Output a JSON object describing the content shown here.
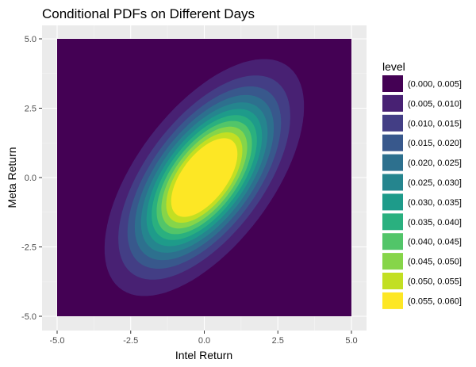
{
  "chart_data": {
    "type": "contour",
    "title": "Conditional PDFs on Different Days",
    "xlabel": "Intel Return",
    "ylabel": "Meta Return",
    "xlim": [
      -5.0,
      5.0
    ],
    "ylim": [
      -5.0,
      5.0
    ],
    "x_ticks": [
      -5.0,
      -2.5,
      0.0,
      2.5,
      5.0
    ],
    "x_tick_labels": [
      "-5.0",
      "-2.5",
      "0.0",
      "2.5",
      "5.0"
    ],
    "y_ticks": [
      -5.0,
      -2.5,
      0.0,
      2.5,
      5.0
    ],
    "y_tick_labels": [
      "-5.0",
      "-2.5",
      "0.0",
      "2.5",
      "5.0"
    ],
    "grid": true,
    "panel_background": "#ebebeb",
    "legend": {
      "title": "level",
      "position": "right",
      "entries": [
        {
          "label": "(0.000, 0.005]",
          "color": "#440154"
        },
        {
          "label": "(0.005, 0.010]",
          "color": "#482173"
        },
        {
          "label": "(0.010, 0.015]",
          "color": "#433e85"
        },
        {
          "label": "(0.015, 0.020]",
          "color": "#38588c"
        },
        {
          "label": "(0.020, 0.025]",
          "color": "#2d708e"
        },
        {
          "label": "(0.025, 0.030]",
          "color": "#25858e"
        },
        {
          "label": "(0.030, 0.035]",
          "color": "#1e9b8a"
        },
        {
          "label": "(0.035, 0.040]",
          "color": "#2ab07f"
        },
        {
          "label": "(0.040, 0.045]",
          "color": "#52c569"
        },
        {
          "label": "(0.045, 0.050]",
          "color": "#86d549"
        },
        {
          "label": "(0.050, 0.055]",
          "color": "#c2df23"
        },
        {
          "label": "(0.055, 0.060]",
          "color": "#fde725"
        }
      ]
    },
    "density": {
      "mean": [
        0.0,
        0.0
      ],
      "sd_x": 1.46,
      "sd_y": 1.84,
      "correlation": 0.6
    },
    "level_breaks": [
      0.005,
      0.01,
      0.015,
      0.02,
      0.025,
      0.03,
      0.035,
      0.04,
      0.045,
      0.05,
      0.055
    ]
  }
}
